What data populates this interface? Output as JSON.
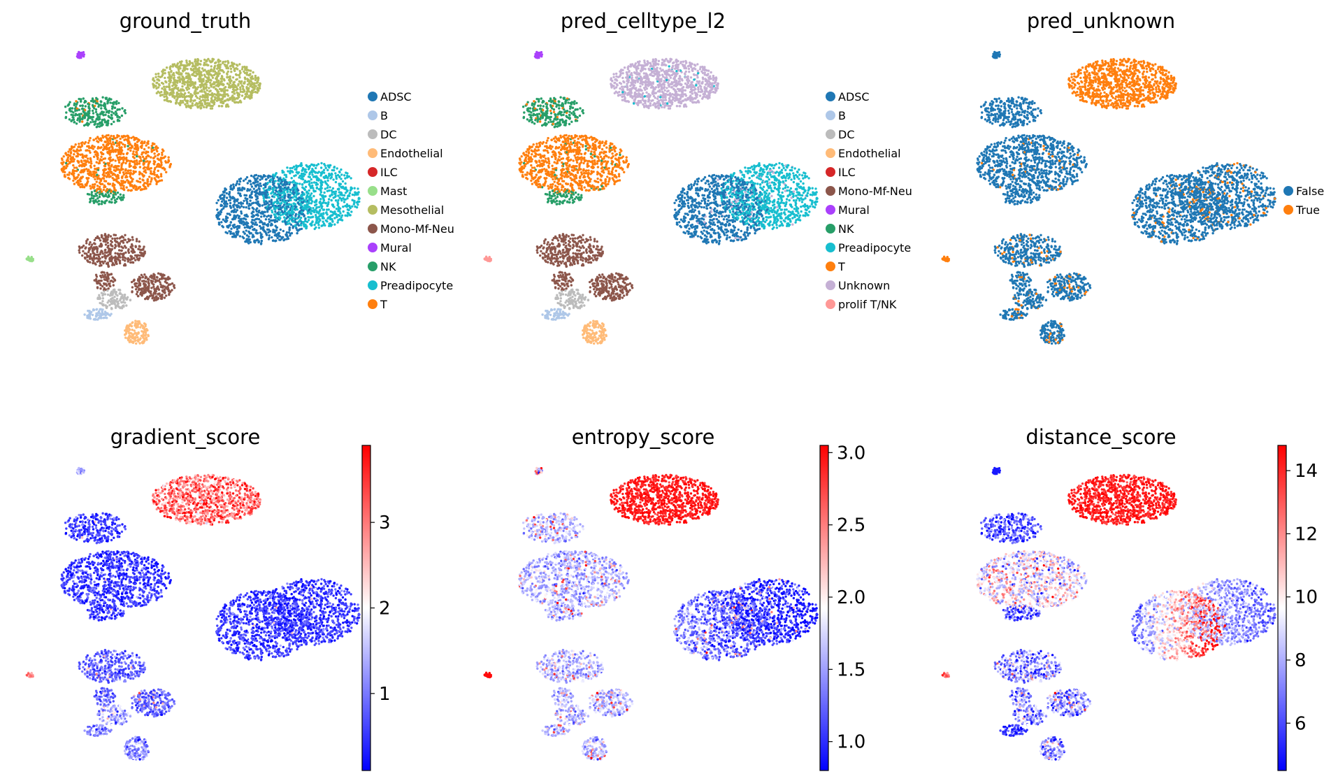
{
  "chart_data": [
    {
      "type": "scatter",
      "title": "ground_truth",
      "color_mode": "categorical",
      "legend": {
        "placement": "right",
        "entries": [
          {
            "name": "ADSC",
            "color": "#1f77b4"
          },
          {
            "name": "B",
            "color": "#aec7e8"
          },
          {
            "name": "DC",
            "color": "#bcbcbc"
          },
          {
            "name": "Endothelial",
            "color": "#ffbb78"
          },
          {
            "name": "ILC",
            "color": "#d62728"
          },
          {
            "name": "Mast",
            "color": "#98df8a"
          },
          {
            "name": "Mesothelial",
            "color": "#b5bd61"
          },
          {
            "name": "Mono-Mf-Neu",
            "color": "#8c564b"
          },
          {
            "name": "Mural",
            "color": "#aa40fc"
          },
          {
            "name": "NK",
            "color": "#279e68"
          },
          {
            "name": "Preadipocyte",
            "color": "#17becf"
          },
          {
            "name": "T",
            "color": "#ff7f0e"
          }
        ]
      }
    },
    {
      "type": "scatter",
      "title": "pred_celltype_l2",
      "color_mode": "categorical",
      "legend": {
        "placement": "right",
        "entries": [
          {
            "name": "ADSC",
            "color": "#1f77b4"
          },
          {
            "name": "B",
            "color": "#aec7e8"
          },
          {
            "name": "DC",
            "color": "#bcbcbc"
          },
          {
            "name": "Endothelial",
            "color": "#ffbb78"
          },
          {
            "name": "ILC",
            "color": "#d62728"
          },
          {
            "name": "Mono-Mf-Neu",
            "color": "#8c564b"
          },
          {
            "name": "Mural",
            "color": "#aa40fc"
          },
          {
            "name": "NK",
            "color": "#279e68"
          },
          {
            "name": "Preadipocyte",
            "color": "#17becf"
          },
          {
            "name": "T",
            "color": "#ff7f0e"
          },
          {
            "name": "Unknown",
            "color": "#c5b0d5"
          },
          {
            "name": "prolif T/NK",
            "color": "#ff9896"
          }
        ]
      }
    },
    {
      "type": "scatter",
      "title": "pred_unknown",
      "color_mode": "categorical",
      "legend": {
        "placement": "right",
        "entries": [
          {
            "name": "False",
            "color": "#1f77b4"
          },
          {
            "name": "True",
            "color": "#ff7f0e"
          }
        ]
      }
    },
    {
      "type": "scatter",
      "title": "gradient_score",
      "color_mode": "continuous",
      "colormap": "bwr",
      "colorbar": {
        "min": 0.1,
        "max": 3.9,
        "ticks": [
          1,
          2,
          3
        ],
        "placement": "right"
      }
    },
    {
      "type": "scatter",
      "title": "entropy_score",
      "color_mode": "continuous",
      "colormap": "bwr",
      "colorbar": {
        "min": 0.8,
        "max": 3.05,
        "ticks": [
          "1.0",
          "1.5",
          "2.0",
          "2.5",
          "3.0"
        ],
        "placement": "right"
      }
    },
    {
      "type": "scatter",
      "title": "distance_score",
      "color_mode": "continuous",
      "colormap": "bwr",
      "colorbar": {
        "min": 4.5,
        "max": 14.8,
        "ticks": [
          6,
          8,
          10,
          12,
          14
        ],
        "placement": "right"
      }
    }
  ]
}
